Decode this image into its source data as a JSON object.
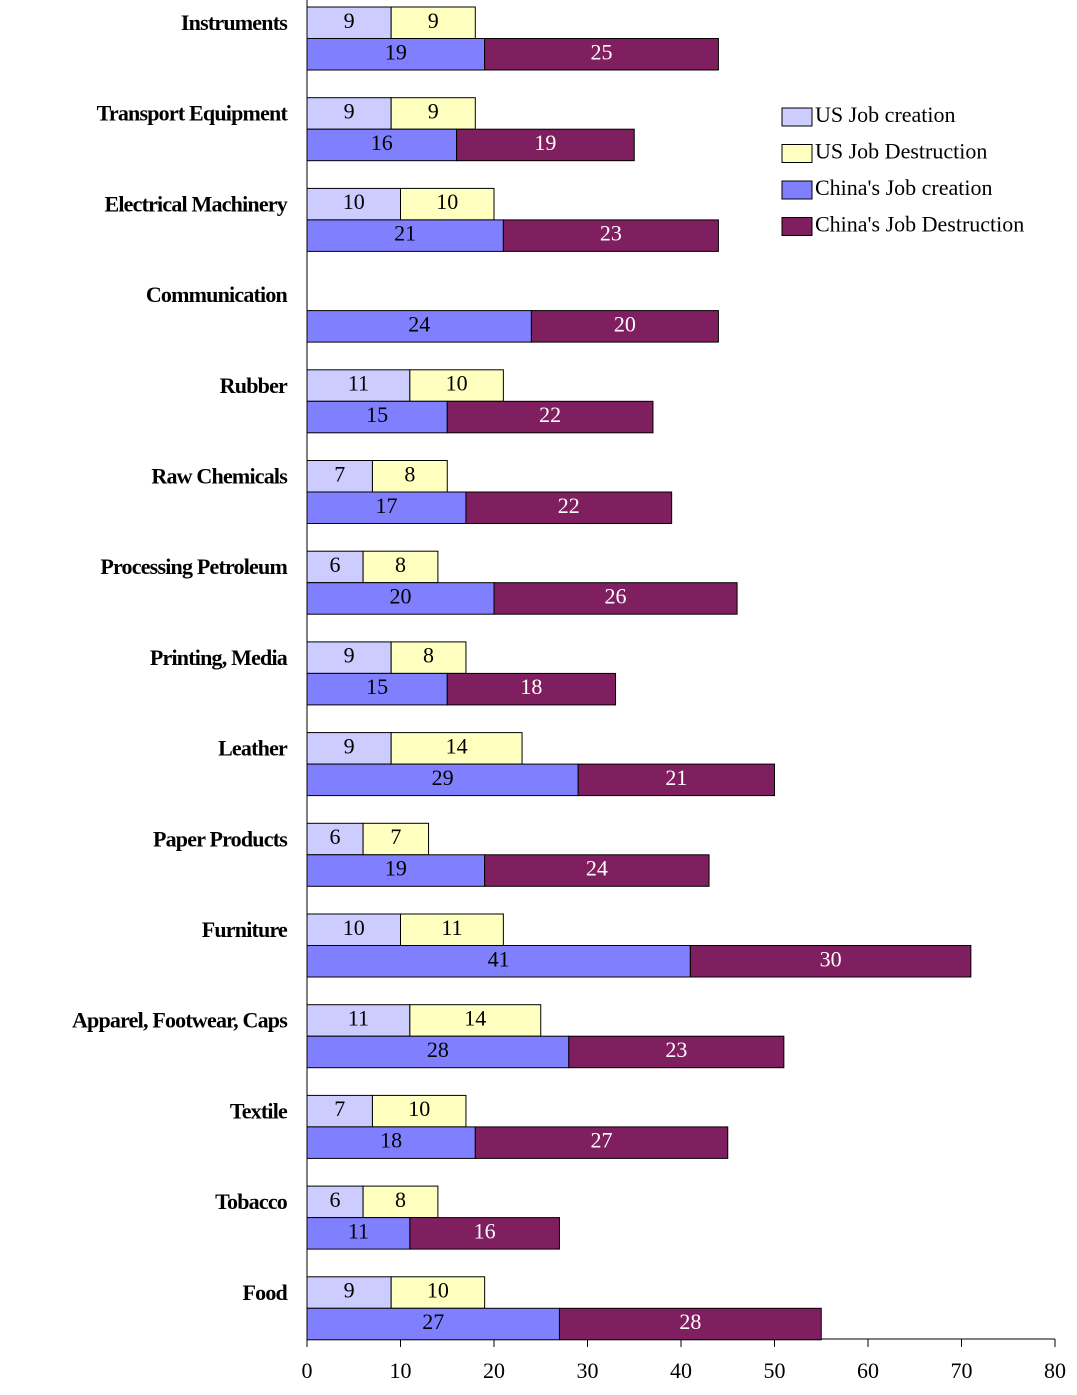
{
  "chart_data": {
    "type": "bar",
    "orientation": "horizontal",
    "categories": [
      "Instruments",
      "Transport Equipment",
      "Electrical Machinery",
      "Communication",
      "Rubber",
      "Raw Chemicals",
      "Processing Petroleum",
      "Printing, Media",
      "Leather",
      "Paper Products",
      "Furniture",
      "Apparel, Footwear, Caps",
      "Textile",
      "Tobacco",
      "Food"
    ],
    "series": [
      {
        "name": "US Job creation",
        "color": "#ccccff",
        "values": [
          9,
          9,
          10,
          null,
          11,
          7,
          6,
          9,
          9,
          6,
          10,
          11,
          7,
          6,
          9
        ]
      },
      {
        "name": "US Job Destruction",
        "color": "#ffffc0",
        "values": [
          9,
          9,
          10,
          null,
          10,
          8,
          8,
          8,
          14,
          7,
          11,
          14,
          10,
          8,
          10
        ]
      },
      {
        "name": "China's Job creation",
        "color": "#8080ff",
        "values": [
          19,
          16,
          21,
          24,
          15,
          17,
          20,
          15,
          29,
          19,
          41,
          28,
          18,
          11,
          27
        ]
      },
      {
        "name": "China's Job Destruction",
        "color": "#7f1f5f",
        "values": [
          25,
          19,
          23,
          20,
          22,
          22,
          26,
          18,
          21,
          24,
          30,
          23,
          27,
          16,
          28
        ]
      }
    ],
    "xlim": [
      0,
      80
    ],
    "xticks": [
      0,
      10,
      20,
      30,
      40,
      50,
      60,
      70,
      80
    ],
    "grid": false,
    "legend": "top-right"
  }
}
